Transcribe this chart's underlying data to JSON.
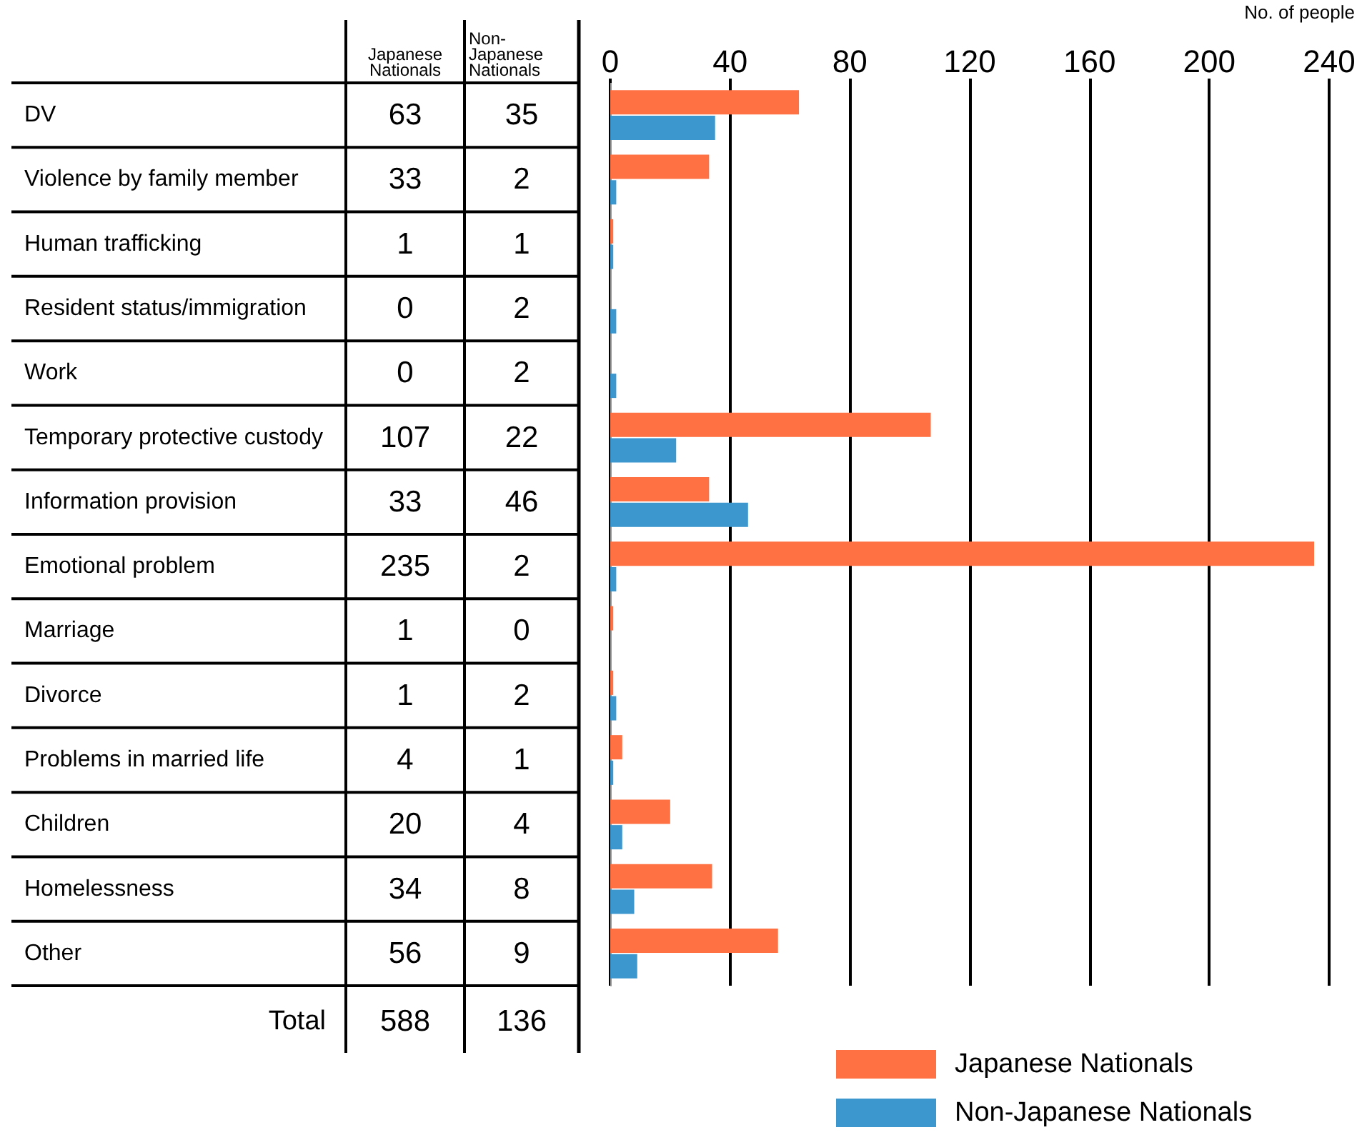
{
  "chart_data": {
    "type": "bar",
    "orientation": "horizontal",
    "x2label": "No. of people",
    "categories": [
      "DV",
      "Violence by family member",
      "Human trafficking",
      "Resident status/immigration",
      "Work",
      "Temporary protective custody",
      "Information provision",
      "Emotional problem",
      "Marriage",
      "Divorce",
      "Problems in married life",
      "Children",
      "Homelessness",
      "Other"
    ],
    "series": [
      {
        "name": "Japanese Nationals",
        "color": "#ff7043",
        "values": [
          63,
          33,
          1,
          0,
          0,
          107,
          33,
          235,
          1,
          1,
          4,
          20,
          34,
          56
        ]
      },
      {
        "name": "Non-Japanese Nationals",
        "color": "#3d97cf",
        "values": [
          35,
          2,
          1,
          2,
          2,
          22,
          46,
          2,
          0,
          2,
          1,
          4,
          8,
          9
        ]
      }
    ],
    "x2lim": [
      0,
      240
    ],
    "x2ticks": [
      0,
      40,
      80,
      120,
      160,
      200,
      240
    ],
    "grid": "x",
    "legend": "bottom right",
    "data_labels": true,
    "annotations": [
      "Total",
      "588",
      "136"
    ]
  }
}
